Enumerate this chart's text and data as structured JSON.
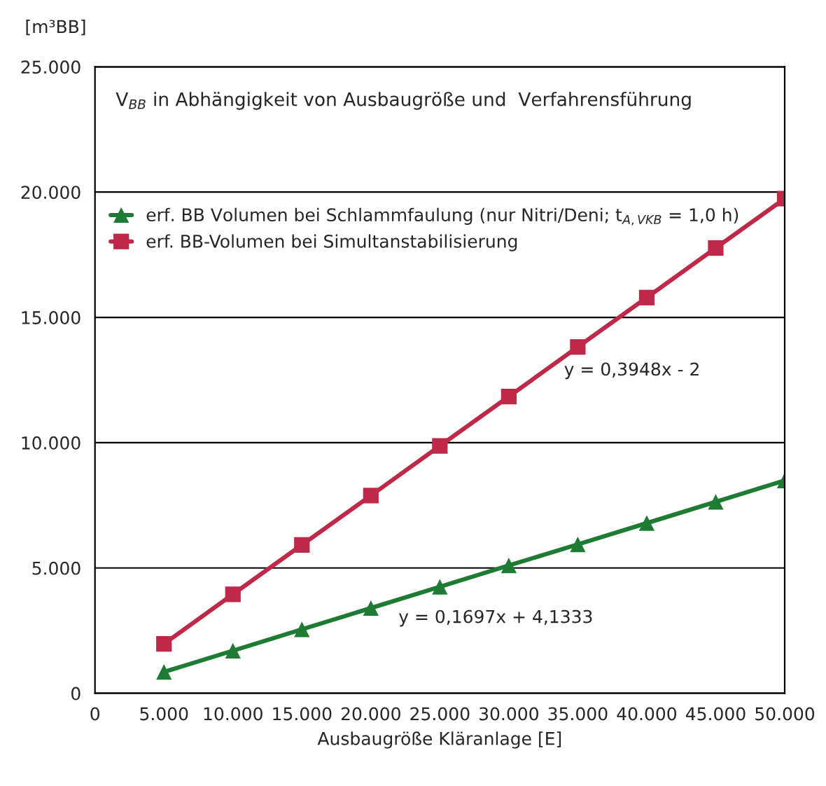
{
  "chart_data": {
    "type": "line",
    "title": "V$_{BB}$ in Abhängigkeit von Ausbaugröße und  Verfahrensführung",
    "xlabel": "Ausbaugröße Kläranlage [E]",
    "ylabel": "[m³BB]",
    "x": [
      5000,
      10000,
      15000,
      20000,
      25000,
      30000,
      35000,
      40000,
      45000,
      50000
    ],
    "series": [
      {
        "name": "erf. BB Volumen bei Schlammfaulung (nur Nitri/Deni; t$_{A,VKB}$ = 1,0 h)",
        "color": "#1e7b34",
        "marker": "triangle",
        "values": [
          850,
          1700,
          2550,
          3400,
          4250,
          5100,
          5940,
          6790,
          7640,
          8490
        ]
      },
      {
        "name": "erf. BB-Volumen bei Simultanstabilisierung",
        "color": "#c0284a",
        "marker": "square",
        "values": [
          1970,
          3950,
          5920,
          7890,
          9870,
          11840,
          13820,
          15790,
          17770,
          19740
        ]
      }
    ],
    "annotations": [
      "y = 0,3948x - 2",
      "y = 0,1697x + 4,1333"
    ],
    "xlim": [
      0,
      50000
    ],
    "ylim": [
      0,
      25000
    ],
    "xticks": [
      {
        "value": 0,
        "label": "0"
      },
      {
        "value": 5000,
        "label": "5.000"
      },
      {
        "value": 10000,
        "label": "10.000"
      },
      {
        "value": 15000,
        "label": "15.000"
      },
      {
        "value": 20000,
        "label": "20.000"
      },
      {
        "value": 25000,
        "label": "25.000"
      },
      {
        "value": 30000,
        "label": "30.000"
      },
      {
        "value": 35000,
        "label": "35.000"
      },
      {
        "value": 40000,
        "label": "40.000"
      },
      {
        "value": 45000,
        "label": "45.000"
      },
      {
        "value": 50000,
        "label": "50.000"
      }
    ],
    "yticks": [
      {
        "value": 0,
        "label": "0"
      },
      {
        "value": 5000,
        "label": "5.000"
      },
      {
        "value": 10000,
        "label": "10.000"
      },
      {
        "value": 15000,
        "label": "15.000"
      },
      {
        "value": 20000,
        "label": "20.000"
      },
      {
        "value": 25000,
        "label": "25.000"
      }
    ],
    "grid": "y",
    "legend": "upper left",
    "line_style": "solid"
  }
}
